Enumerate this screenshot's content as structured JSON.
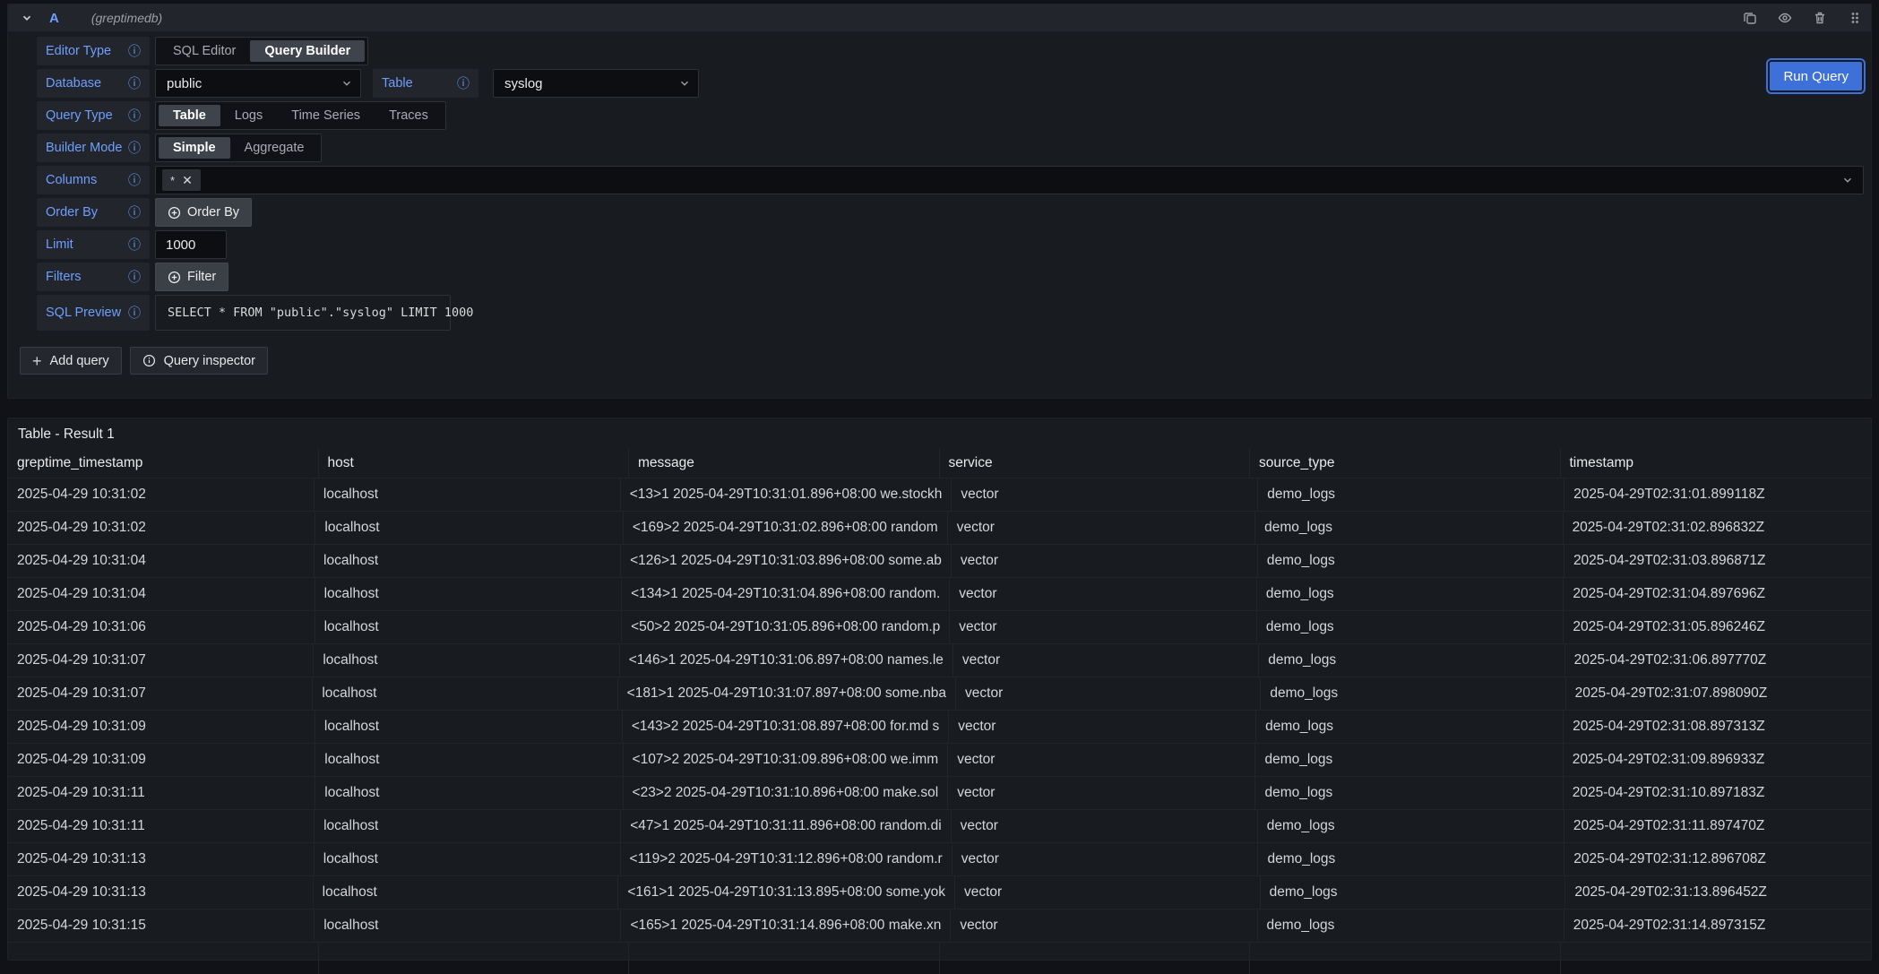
{
  "icons": {
    "info": "ⓘ",
    "close": "✕",
    "plus": "+",
    "asterisk": "*"
  },
  "query_header": {
    "ref_id": "A",
    "datasource": "(greptimedb)"
  },
  "toolbar": {
    "run_query": "Run Query"
  },
  "query_editor": {
    "editor_type": {
      "label": "Editor Type",
      "options": [
        "SQL Editor",
        "Query Builder"
      ],
      "selected": "Query Builder"
    },
    "database": {
      "label": "Database",
      "value": "public"
    },
    "table": {
      "label": "Table",
      "value": "syslog"
    },
    "query_type": {
      "label": "Query Type",
      "options": [
        "Table",
        "Logs",
        "Time Series",
        "Traces"
      ],
      "selected": "Table"
    },
    "builder_mode": {
      "label": "Builder Mode",
      "options": [
        "Simple",
        "Aggregate"
      ],
      "selected": "Simple"
    },
    "columns": {
      "label": "Columns",
      "chip": "*"
    },
    "order_by": {
      "label": "Order By",
      "button": "Order By"
    },
    "limit": {
      "label": "Limit",
      "value": "1000"
    },
    "filters": {
      "label": "Filters",
      "button": "Filter"
    },
    "sql_preview": {
      "label": "SQL Preview",
      "sql": "SELECT * FROM \"public\".\"syslog\" LIMIT 1000"
    }
  },
  "actions": {
    "add_query": "Add query",
    "query_inspector": "Query inspector"
  },
  "table_panel": {
    "title": "Table - Result 1",
    "columns": [
      "greptime_timestamp",
      "host",
      "message",
      "service",
      "source_type",
      "timestamp"
    ],
    "rows": [
      [
        "2025-04-29 10:31:02",
        "localhost",
        "<13>1 2025-04-29T10:31:01.896+08:00 we.stockh",
        "vector",
        "demo_logs",
        "2025-04-29T02:31:01.899118Z"
      ],
      [
        "2025-04-29 10:31:02",
        "localhost",
        "<169>2 2025-04-29T10:31:02.896+08:00 random",
        "vector",
        "demo_logs",
        "2025-04-29T02:31:02.896832Z"
      ],
      [
        "2025-04-29 10:31:04",
        "localhost",
        "<126>1 2025-04-29T10:31:03.896+08:00 some.ab",
        "vector",
        "demo_logs",
        "2025-04-29T02:31:03.896871Z"
      ],
      [
        "2025-04-29 10:31:04",
        "localhost",
        "<134>1 2025-04-29T10:31:04.896+08:00 random.",
        "vector",
        "demo_logs",
        "2025-04-29T02:31:04.897696Z"
      ],
      [
        "2025-04-29 10:31:06",
        "localhost",
        "<50>2 2025-04-29T10:31:05.896+08:00 random.p",
        "vector",
        "demo_logs",
        "2025-04-29T02:31:05.896246Z"
      ],
      [
        "2025-04-29 10:31:07",
        "localhost",
        "<146>1 2025-04-29T10:31:06.897+08:00 names.le",
        "vector",
        "demo_logs",
        "2025-04-29T02:31:06.897770Z"
      ],
      [
        "2025-04-29 10:31:07",
        "localhost",
        "<181>1 2025-04-29T10:31:07.897+08:00 some.nba",
        "vector",
        "demo_logs",
        "2025-04-29T02:31:07.898090Z"
      ],
      [
        "2025-04-29 10:31:09",
        "localhost",
        "<143>2 2025-04-29T10:31:08.897+08:00 for.md s",
        "vector",
        "demo_logs",
        "2025-04-29T02:31:08.897313Z"
      ],
      [
        "2025-04-29 10:31:09",
        "localhost",
        "<107>2 2025-04-29T10:31:09.896+08:00 we.imm",
        "vector",
        "demo_logs",
        "2025-04-29T02:31:09.896933Z"
      ],
      [
        "2025-04-29 10:31:11",
        "localhost",
        "<23>2 2025-04-29T10:31:10.896+08:00 make.sol",
        "vector",
        "demo_logs",
        "2025-04-29T02:31:10.897183Z"
      ],
      [
        "2025-04-29 10:31:11",
        "localhost",
        "<47>1 2025-04-29T10:31:11.896+08:00 random.di",
        "vector",
        "demo_logs",
        "2025-04-29T02:31:11.897470Z"
      ],
      [
        "2025-04-29 10:31:13",
        "localhost",
        "<119>2 2025-04-29T10:31:12.896+08:00 random.r",
        "vector",
        "demo_logs",
        "2025-04-29T02:31:12.896708Z"
      ],
      [
        "2025-04-29 10:31:13",
        "localhost",
        "<161>1 2025-04-29T10:31:13.895+08:00 some.yok",
        "vector",
        "demo_logs",
        "2025-04-29T02:31:13.896452Z"
      ],
      [
        "2025-04-29 10:31:15",
        "localhost",
        "<165>1 2025-04-29T10:31:14.896+08:00 make.xn",
        "vector",
        "demo_logs",
        "2025-04-29T02:31:14.897315Z"
      ]
    ]
  },
  "colors": {
    "background": "#111217",
    "panel": "#181b1f",
    "secondary": "#22252b",
    "label_blue": "#6e9fff",
    "primary_button": "#3d71d9",
    "text": "#ccccdc"
  }
}
